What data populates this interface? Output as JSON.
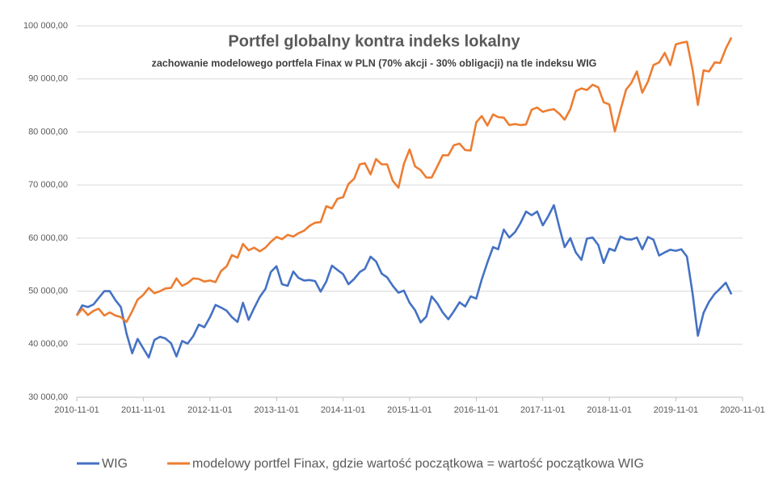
{
  "chart_data": {
    "type": "line",
    "title": "Portfel globalny kontra indeks lokalny",
    "subtitle": "zachowanie modelowego portfela Finax w PLN (70% akcji - 30%  obligacji) na tle indeksu WIG",
    "x": [
      "2010-11-01",
      "2010-12-01",
      "2011-01-01",
      "2011-02-01",
      "2011-03-01",
      "2011-04-01",
      "2011-05-01",
      "2011-06-01",
      "2011-07-01",
      "2011-08-01",
      "2011-09-01",
      "2011-10-01",
      "2011-11-01",
      "2011-12-01",
      "2012-01-01",
      "2012-02-01",
      "2012-03-01",
      "2012-04-01",
      "2012-05-01",
      "2012-06-01",
      "2012-07-01",
      "2012-08-01",
      "2012-09-01",
      "2012-10-01",
      "2012-11-01",
      "2012-12-01",
      "2013-01-01",
      "2013-02-01",
      "2013-03-01",
      "2013-04-01",
      "2013-05-01",
      "2013-06-01",
      "2013-07-01",
      "2013-08-01",
      "2013-09-01",
      "2013-10-01",
      "2013-11-01",
      "2013-12-01",
      "2014-01-01",
      "2014-02-01",
      "2014-03-01",
      "2014-04-01",
      "2014-05-01",
      "2014-06-01",
      "2014-07-01",
      "2014-08-01",
      "2014-09-01",
      "2014-10-01",
      "2014-11-01",
      "2014-12-01",
      "2015-01-01",
      "2015-02-01",
      "2015-03-01",
      "2015-04-01",
      "2015-05-01",
      "2015-06-01",
      "2015-07-01",
      "2015-08-01",
      "2015-09-01",
      "2015-10-01",
      "2015-11-01",
      "2015-12-01",
      "2016-01-01",
      "2016-02-01",
      "2016-03-01",
      "2016-04-01",
      "2016-05-01",
      "2016-06-01",
      "2016-07-01",
      "2016-08-01",
      "2016-09-01",
      "2016-10-01",
      "2016-11-01",
      "2016-12-01",
      "2017-01-01",
      "2017-02-01",
      "2017-03-01",
      "2017-04-01",
      "2017-05-01",
      "2017-06-01",
      "2017-07-01",
      "2017-08-01",
      "2017-09-01",
      "2017-10-01",
      "2017-11-01",
      "2017-12-01",
      "2018-01-01",
      "2018-02-01",
      "2018-03-01",
      "2018-04-01",
      "2018-05-01",
      "2018-06-01",
      "2018-07-01",
      "2018-08-01",
      "2018-09-01",
      "2018-10-01",
      "2018-11-01",
      "2018-12-01",
      "2019-01-01",
      "2019-02-01",
      "2019-03-01",
      "2019-04-01",
      "2019-05-01",
      "2019-06-01",
      "2019-07-01",
      "2019-08-01",
      "2019-09-01",
      "2019-10-01",
      "2019-11-01",
      "2019-12-01",
      "2020-01-01",
      "2020-02-01",
      "2020-03-01",
      "2020-04-01",
      "2020-05-01",
      "2020-06-01",
      "2020-07-01",
      "2020-08-01",
      "2020-09-01"
    ],
    "series": [
      {
        "name": "WIG",
        "color": "#4472c4",
        "values": [
          45400,
          47300,
          47000,
          47500,
          48700,
          50000,
          50000,
          48300,
          47000,
          42000,
          38300,
          41000,
          39200,
          37500,
          40800,
          41400,
          41100,
          40200,
          37700,
          40600,
          40100,
          41500,
          43700,
          43200,
          45100,
          47400,
          46900,
          46300,
          45100,
          44200,
          47800,
          44600,
          46800,
          48900,
          50400,
          53600,
          54700,
          51300,
          51000,
          53700,
          52500,
          52000,
          52100,
          51900,
          49900,
          51800,
          54800,
          54000,
          53200,
          51300,
          52300,
          53600,
          54200,
          56500,
          55600,
          53300,
          52600,
          51000,
          49700,
          50100,
          47800,
          46400,
          44100,
          45200,
          49000,
          47700,
          46000,
          44700,
          46200,
          47900,
          47100,
          49000,
          48600,
          52200,
          55400,
          58300,
          57900,
          61600,
          60100,
          61100,
          62800,
          65000,
          64300,
          65000,
          62400,
          64100,
          66200,
          61900,
          58300,
          60000,
          57300,
          55900,
          59900,
          60100,
          58700,
          55300,
          58000,
          57600,
          60300,
          59800,
          59700,
          60100,
          57900,
          60200,
          59700,
          56700,
          57300,
          57800,
          57600,
          57900,
          56500,
          49500,
          41600,
          45900,
          48000,
          49500,
          50500,
          51600,
          49400
        ]
      },
      {
        "name": "modelowy portfel Finax, gdzie wartość początkowa = wartość początkowa WIG",
        "color": "#ed7d31",
        "values": [
          45400,
          46700,
          45500,
          46300,
          46700,
          45400,
          46000,
          45400,
          45100,
          44200,
          46200,
          48400,
          49300,
          50600,
          49600,
          50000,
          50500,
          50600,
          52400,
          51000,
          51500,
          52400,
          52300,
          51800,
          52000,
          51700,
          53800,
          54700,
          56800,
          56300,
          58900,
          57700,
          58200,
          57500,
          58200,
          59300,
          60200,
          59800,
          60600,
          60300,
          60900,
          61400,
          62300,
          62900,
          63000,
          66000,
          65600,
          67400,
          67700,
          70200,
          71200,
          73900,
          74100,
          72000,
          74900,
          73900,
          73900,
          70800,
          69500,
          74000,
          76700,
          73500,
          72800,
          71400,
          71400,
          73500,
          75600,
          75600,
          77500,
          77800,
          76600,
          76500,
          81800,
          83000,
          81200,
          83300,
          82800,
          82700,
          81300,
          81500,
          81300,
          81400,
          84200,
          84600,
          83800,
          84100,
          84300,
          83400,
          82300,
          84300,
          87700,
          88200,
          87900,
          88900,
          88400,
          85600,
          85200,
          80100,
          84100,
          88000,
          89200,
          91400,
          87400,
          89500,
          92600,
          93100,
          94900,
          92600,
          96500,
          96800,
          97000,
          91700,
          85100,
          91600,
          91400,
          93100,
          93000,
          95700,
          97800
        ]
      }
    ],
    "xlim": [
      "2010-11-01",
      "2020-11-01"
    ],
    "xticks": [
      "2010-11-01",
      "2011-11-01",
      "2012-11-01",
      "2013-11-01",
      "2014-11-01",
      "2015-11-01",
      "2016-11-01",
      "2017-11-01",
      "2018-11-01",
      "2019-11-01",
      "2020-11-01"
    ],
    "ylim": [
      30000,
      100000
    ],
    "yticks": [
      {
        "value": 30000,
        "label": "30 000,00"
      },
      {
        "value": 40000,
        "label": "40 000,00"
      },
      {
        "value": 50000,
        "label": "50 000,00"
      },
      {
        "value": 60000,
        "label": "60 000,00"
      },
      {
        "value": 70000,
        "label": "70 000,00"
      },
      {
        "value": 80000,
        "label": "80 000,00"
      },
      {
        "value": 90000,
        "label": "90 000,00"
      },
      {
        "value": 100000,
        "label": "100 000,00"
      }
    ],
    "grid": true,
    "legend": "bottom"
  }
}
